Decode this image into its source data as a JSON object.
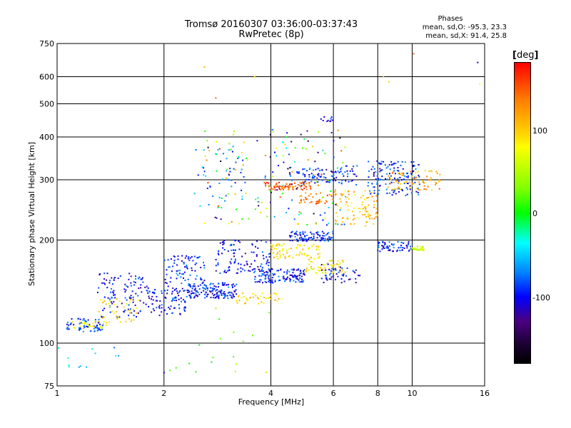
{
  "chart_data": {
    "type": "scatter",
    "title_line1": "Tromsø 20160307 03:36:00-03:37:43",
    "title_line2": "RwPretec (8p)",
    "xlabel": "Frequency [MHz]",
    "ylabel": "Stationary phase Virtual Height [km]",
    "x_scale": "log",
    "y_scale": "log",
    "xlim": [
      1,
      16
    ],
    "ylim": [
      75,
      750
    ],
    "x_ticks": [
      1,
      2,
      4,
      6,
      8,
      10,
      16
    ],
    "x_tick_labels": [
      "1",
      "2",
      "4",
      "6",
      "8",
      "10",
      "16"
    ],
    "y_ticks": [
      75,
      100,
      200,
      300,
      400,
      500,
      600,
      750
    ],
    "y_tick_labels": [
      "75",
      "100",
      "200",
      "300",
      "400",
      "500",
      "600",
      "750"
    ],
    "grid": true,
    "stats": {
      "heading": "Phases",
      "line1": "mean, sd,O: -95.3, 23.3",
      "line2": "mean, sd,X:  91.4, 25.8"
    },
    "colorbar": {
      "unit_open": "[",
      "unit": "deg",
      "unit_close": "]",
      "ticks": [
        {
          "label": "100",
          "value": 100
        },
        {
          "label": "0",
          "value": 0
        },
        {
          "label": "-100",
          "value": -100
        }
      ],
      "range": [
        -180,
        180
      ]
    },
    "clusters": [
      {
        "x": [
          1.05,
          1.35
        ],
        "y": [
          108,
          118
        ],
        "phase": -90,
        "n": 60
      },
      {
        "x": [
          1.1,
          1.4
        ],
        "y": [
          110,
          116
        ],
        "phase": 90,
        "n": 25
      },
      {
        "x": [
          1.3,
          1.8
        ],
        "y": [
          118,
          160
        ],
        "phase": -100,
        "n": 110
      },
      {
        "x": [
          1.3,
          1.7
        ],
        "y": [
          115,
          135
        ],
        "phase": 95,
        "n": 40
      },
      {
        "x": [
          1.8,
          2.3
        ],
        "y": [
          120,
          145
        ],
        "phase": -95,
        "n": 90
      },
      {
        "x": [
          2.0,
          2.6
        ],
        "y": [
          145,
          180
        ],
        "phase": -90,
        "n": 80
      },
      {
        "x": [
          2.3,
          3.2
        ],
        "y": [
          135,
          150
        ],
        "phase": -95,
        "n": 150
      },
      {
        "x": [
          2.8,
          4.0
        ],
        "y": [
          160,
          200
        ],
        "phase": -100,
        "n": 110
      },
      {
        "x": [
          3.2,
          4.3
        ],
        "y": [
          130,
          140
        ],
        "phase": 100,
        "n": 40
      },
      {
        "x": [
          3.6,
          5.0
        ],
        "y": [
          150,
          165
        ],
        "phase": -95,
        "n": 130
      },
      {
        "x": [
          4.0,
          5.5
        ],
        "y": [
          175,
          195
        ],
        "phase": 95,
        "n": 80
      },
      {
        "x": [
          4.5,
          6.0
        ],
        "y": [
          198,
          212
        ],
        "phase": -90,
        "n": 90
      },
      {
        "x": [
          5.0,
          6.5
        ],
        "y": [
          160,
          175
        ],
        "phase": 90,
        "n": 60
      },
      {
        "x": [
          5.5,
          7.2
        ],
        "y": [
          150,
          170
        ],
        "phase": -100,
        "n": 50
      },
      {
        "x": [
          3.8,
          5.2
        ],
        "y": [
          280,
          295
        ],
        "phase": 150,
        "n": 80
      },
      {
        "x": [
          4.8,
          6.0
        ],
        "y": [
          255,
          275
        ],
        "phase": 140,
        "n": 40
      },
      {
        "x": [
          4.5,
          7.0
        ],
        "y": [
          290,
          330
        ],
        "phase": -95,
        "n": 100
      },
      {
        "x": [
          6.0,
          8.0
        ],
        "y": [
          220,
          280
        ],
        "phase": 110,
        "n": 90
      },
      {
        "x": [
          7.5,
          10.5
        ],
        "y": [
          270,
          340
        ],
        "phase": -90,
        "n": 140
      },
      {
        "x": [
          8.5,
          12.0
        ],
        "y": [
          280,
          320
        ],
        "phase": 120,
        "n": 70
      },
      {
        "x": [
          8.0,
          10.0
        ],
        "y": [
          185,
          198
        ],
        "phase": -95,
        "n": 60
      },
      {
        "x": [
          10.0,
          10.8
        ],
        "y": [
          186,
          192
        ],
        "phase": 60,
        "n": 30
      },
      {
        "x": [
          2.6,
          6.5
        ],
        "y": [
          220,
          420
        ],
        "phase": 0,
        "n": 170
      },
      {
        "x": [
          2.4,
          3.4
        ],
        "y": [
          250,
          380
        ],
        "phase": -70,
        "n": 40
      },
      {
        "x": [
          5.5,
          6.0
        ],
        "y": [
          440,
          460
        ],
        "phase": -100,
        "n": 10
      },
      {
        "x": [
          1.0,
          1.5
        ],
        "y": [
          85,
          98
        ],
        "phase": -50,
        "n": 12
      },
      {
        "x": [
          2.0,
          4.0
        ],
        "y": [
          82,
          128
        ],
        "phase": 30,
        "n": 18
      }
    ],
    "outliers": [
      {
        "x": 2.6,
        "y": 640,
        "phase": 120
      },
      {
        "x": 2.8,
        "y": 520,
        "phase": 150
      },
      {
        "x": 3.6,
        "y": 600,
        "phase": 100
      },
      {
        "x": 10.1,
        "y": 700,
        "phase": 150
      },
      {
        "x": 15.3,
        "y": 660,
        "phase": -110
      },
      {
        "x": 15.5,
        "y": 570,
        "phase": 80
      },
      {
        "x": 8.3,
        "y": 600,
        "phase": 110
      },
      {
        "x": 8.6,
        "y": 580,
        "phase": 100
      },
      {
        "x": 2.0,
        "y": 82,
        "phase": -110
      },
      {
        "x": 4.2,
        "y": 330,
        "phase": -100
      }
    ]
  }
}
